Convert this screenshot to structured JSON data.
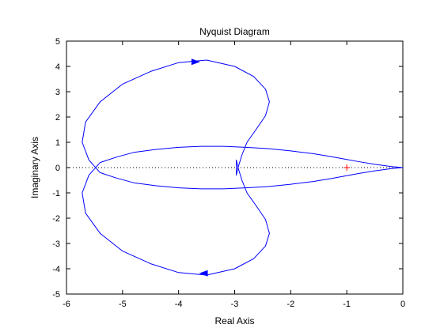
{
  "chart_data": {
    "type": "line",
    "title": "Nyquist Diagram",
    "xlabel": "Real Axis",
    "ylabel": "Imaginary Axis",
    "xlim": [
      -6,
      0
    ],
    "ylim": [
      -5,
      5
    ],
    "xticks": [
      -6,
      -5,
      -4,
      -3,
      -2,
      -1,
      0
    ],
    "yticks": [
      -5,
      -4,
      -3,
      -2,
      -1,
      0,
      1,
      2,
      3,
      4,
      5
    ],
    "grid": false,
    "zero_reference_line": {
      "y": 0,
      "style": "dotted"
    },
    "critical_point": {
      "x": -1,
      "y": 0,
      "marker": "+"
    },
    "series": [
      {
        "x": [
          0,
          -0.2,
          -0.5,
          -0.8,
          -1.0,
          -1.3,
          -1.6,
          -2.0,
          -2.4,
          -2.8,
          -3.2,
          -3.6,
          -4.0,
          -4.4,
          -4.8,
          -5.1,
          -5.4,
          -5.6,
          -5.72,
          -5.66,
          -5.4,
          -5.0,
          -4.5,
          -4.0,
          -3.5,
          -3.0,
          -2.66,
          -2.45,
          -2.38,
          -2.45,
          -2.62,
          -2.78,
          -2.87,
          -2.94,
          -2.97,
          -2.97,
          -2.94,
          -2.87,
          -2.78,
          -2.62,
          -2.45,
          -2.38,
          -2.45,
          -2.66,
          -3.0,
          -3.5,
          -4.0,
          -4.5,
          -5.0,
          -5.4,
          -5.66,
          -5.72,
          -5.6,
          -5.4,
          -5.1,
          -4.8,
          -4.4,
          -4.0,
          -3.6,
          -3.2,
          -2.8,
          -2.4,
          -2.0,
          -1.6,
          -1.3,
          -1.0,
          -0.8,
          -0.5,
          -0.2,
          0
        ],
        "y": [
          0,
          -0.04,
          -0.13,
          -0.24,
          -0.32,
          -0.44,
          -0.55,
          -0.66,
          -0.75,
          -0.8,
          -0.84,
          -0.84,
          -0.8,
          -0.72,
          -0.6,
          -0.42,
          -0.2,
          0.3,
          1.0,
          1.8,
          2.6,
          3.3,
          3.8,
          4.15,
          4.25,
          4.0,
          3.6,
          3.1,
          2.6,
          2.05,
          1.5,
          1.0,
          0.5,
          0,
          -0.3,
          0.3,
          0,
          -0.5,
          -1.0,
          -1.5,
          -2.05,
          -2.6,
          -3.1,
          -3.6,
          -4.0,
          -4.25,
          -4.15,
          -3.8,
          -3.3,
          -2.6,
          -1.8,
          -1.0,
          -0.3,
          0.2,
          0.42,
          0.6,
          0.72,
          0.8,
          0.84,
          0.84,
          0.8,
          0.75,
          0.66,
          0.55,
          0.44,
          0.32,
          0.24,
          0.13,
          0.04,
          0
        ],
        "color": "#0000ff"
      }
    ],
    "arrows": [
      {
        "x": -3.7,
        "y": 4.18,
        "direction": "right"
      },
      {
        "x": -3.55,
        "y": -4.18,
        "direction": "left"
      }
    ],
    "colors": {
      "curve": "#0000ff",
      "critical_point": "#ff0000",
      "reference_line": "#000000"
    }
  }
}
